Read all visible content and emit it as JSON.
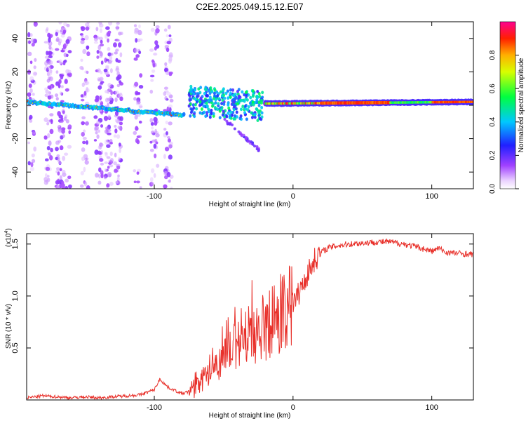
{
  "figure": {
    "title": "C2E2.2025.049.15.12.E07"
  },
  "colors": {
    "snr_line": "#e8302a",
    "axes": "#000000",
    "background": "#ffffff"
  },
  "chart_data": [
    {
      "type": "heatmap",
      "xlabel": "Height of straight line (km)",
      "ylabel": "Frequency (Hz)",
      "xlim": [
        -192,
        130
      ],
      "ylim": [
        -50,
        50
      ],
      "xticks": [
        -100,
        0,
        100
      ],
      "xticklabels": [
        "-100",
        "0",
        "100"
      ],
      "yticks": [
        -40,
        -20,
        0,
        20,
        40
      ],
      "yticklabels": [
        "-40",
        "-20",
        "0",
        "20",
        "40"
      ],
      "colorbar": {
        "label": "Normalized spectral amplitude",
        "range": [
          0,
          1
        ],
        "ticks": [
          0.0,
          0.2,
          0.4,
          0.6,
          0.8
        ],
        "ticklabels": [
          "0.0",
          "0.2",
          "0.4",
          "0.6",
          "0.8"
        ],
        "colormap": "rainbow (white-violet-blue-cyan-green-yellow-red-magenta)"
      },
      "features": [
        {
          "name": "main band",
          "x": [
            -192,
            -80
          ],
          "freq_start": 2,
          "freq_end": -6,
          "amplitude": 0.55
        },
        {
          "name": "main band",
          "x": [
            -20,
            130
          ],
          "freq_start": 1,
          "freq_end": 2,
          "amplitude": 0.85
        },
        {
          "name": "scattered cluster",
          "x": [
            -75,
            -22
          ],
          "freq": [
            -10,
            10
          ],
          "amplitude": 0.35
        },
        {
          "name": "descending streak",
          "x": [
            -50,
            -20
          ],
          "freq_start": -8,
          "freq_end": -30,
          "amplitude": 0.15
        },
        {
          "name": "broadband noise columns",
          "x": [
            -192,
            -80
          ],
          "freq": [
            -50,
            50
          ],
          "amplitude": 0.05
        }
      ]
    },
    {
      "type": "line",
      "xlabel": "Height of straight line (km)",
      "ylabel": "SNR (10 * v/v)",
      "y_multiplier": "(x10",
      "y_multiplier_exp": "4",
      "xlim": [
        -192,
        130
      ],
      "ylim": [
        0,
        1.6
      ],
      "xticks": [
        -100,
        0,
        100
      ],
      "xticklabels": [
        "-100",
        "0",
        "100"
      ],
      "yticks": [
        0.5,
        1.0,
        1.5
      ],
      "yticklabels": [
        "0.5",
        "1.0",
        "1.5"
      ],
      "series": [
        {
          "x": [
            -192,
            -180,
            -170,
            -160,
            -150,
            -140,
            -130,
            -120,
            -110,
            -100,
            -96,
            -90,
            -80,
            -75,
            -70,
            -65,
            -60,
            -55,
            -50,
            -45,
            -40,
            -35,
            -30,
            -25,
            -20,
            -15,
            -10,
            -5,
            0,
            5,
            10,
            15,
            20,
            25,
            30,
            40,
            50,
            60,
            70,
            80,
            90,
            100,
            105,
            110,
            120,
            130
          ],
          "y": [
            0.02,
            0.04,
            0.03,
            0.02,
            0.03,
            0.02,
            0.03,
            0.04,
            0.05,
            0.1,
            0.2,
            0.12,
            0.06,
            0.08,
            0.12,
            0.2,
            0.28,
            0.35,
            0.42,
            0.46,
            0.52,
            0.58,
            0.62,
            0.66,
            0.7,
            0.76,
            0.82,
            0.86,
            0.92,
            1.05,
            1.2,
            1.34,
            1.42,
            1.46,
            1.48,
            1.5,
            1.51,
            1.52,
            1.52,
            1.5,
            1.47,
            1.43,
            1.46,
            1.42,
            1.41,
            1.4
          ]
        }
      ]
    }
  ]
}
